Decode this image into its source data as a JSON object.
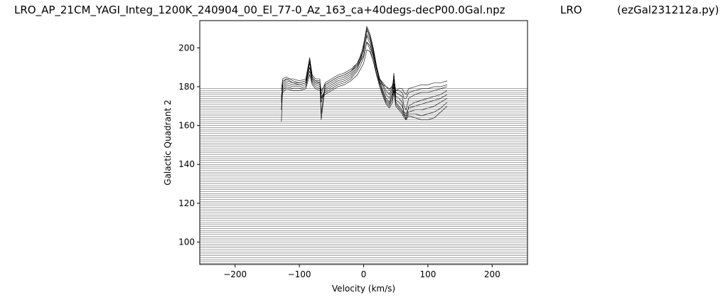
{
  "title": {
    "left": "LRO_AP_21CM_YAGI_Integ_1200K_240904_00_El_77-0_Az_163_ca+40degs-decP00.0Gal.npz",
    "middle": "LRO",
    "right": "(ezGal231212a.py)"
  },
  "chart_data": {
    "type": "line",
    "xlabel": "Velocity (km/s)",
    "ylabel": "Galactic Quadrant 2",
    "xlim": [
      -255,
      255
    ],
    "ylim": [
      88.5,
      214
    ],
    "xticks": [
      -200,
      -100,
      0,
      100,
      200
    ],
    "yticks": [
      100,
      120,
      140,
      160,
      180,
      200
    ],
    "grid": false,
    "line_color": "#000000",
    "baseline_rows": {
      "first": 89,
      "last": 179,
      "step": 1,
      "note": "horizontal zero-signal traces for each galactic longitude row"
    },
    "spectra": [
      {
        "offset": 179,
        "x": [
          -128,
          -126,
          -120,
          -110,
          -100,
          -90,
          -84,
          -80,
          -75,
          -68,
          -66,
          -60,
          -50,
          -40,
          -30,
          -20,
          -10,
          -5,
          0,
          5,
          10,
          15,
          20,
          25,
          30,
          35,
          40,
          45,
          47,
          50,
          55,
          60,
          63,
          66,
          70,
          80,
          90,
          100,
          110,
          120,
          130
        ],
        "y": [
          179,
          183,
          184,
          182,
          181,
          182,
          190,
          184,
          182,
          182,
          178,
          181,
          183,
          185,
          186,
          188,
          191,
          193,
          196,
          203,
          199,
          193,
          187,
          182,
          181,
          180,
          179,
          180,
          181,
          178,
          179,
          179,
          177,
          176,
          179,
          180,
          181,
          181,
          182,
          182,
          183
        ]
      },
      {
        "offset": 178,
        "x": [
          -128,
          -126,
          -120,
          -110,
          -100,
          -90,
          -84,
          -80,
          -75,
          -68,
          -66,
          -60,
          -50,
          -40,
          -30,
          -20,
          -10,
          -5,
          0,
          5,
          10,
          15,
          20,
          25,
          30,
          35,
          40,
          45,
          47,
          50,
          55,
          60,
          63,
          66,
          70,
          80,
          90,
          100,
          110,
          120,
          130
        ],
        "y": [
          178,
          184,
          185,
          183,
          182,
          183,
          193,
          185,
          183,
          183,
          176,
          182,
          184,
          186,
          187,
          189,
          192,
          195,
          199,
          206,
          202,
          196,
          189,
          184,
          182,
          180,
          178,
          181,
          184,
          178,
          178,
          177,
          174,
          174,
          177,
          178,
          179,
          179,
          180,
          180,
          181
        ]
      },
      {
        "offset": 177,
        "x": [
          -128,
          -126,
          -120,
          -110,
          -100,
          -90,
          -84,
          -80,
          -75,
          -68,
          -66,
          -60,
          -50,
          -40,
          -30,
          -20,
          -10,
          -5,
          0,
          5,
          10,
          15,
          20,
          25,
          30,
          35,
          40,
          45,
          47,
          50,
          55,
          60,
          63,
          66,
          70,
          80,
          90,
          100,
          110,
          120,
          130
        ],
        "y": [
          168,
          182,
          184,
          184,
          183,
          184,
          195,
          186,
          184,
          184,
          166,
          181,
          183,
          185,
          186,
          188,
          192,
          196,
          201,
          209,
          205,
          198,
          190,
          184,
          181,
          178,
          176,
          180,
          186,
          177,
          176,
          175,
          170,
          168,
          174,
          176,
          177,
          177,
          178,
          179,
          180
        ]
      },
      {
        "offset": 176,
        "x": [
          -128,
          -126,
          -120,
          -110,
          -100,
          -90,
          -84,
          -80,
          -75,
          -68,
          -66,
          -60,
          -50,
          -40,
          -30,
          -20,
          -10,
          -5,
          0,
          5,
          10,
          15,
          20,
          25,
          30,
          35,
          40,
          45,
          47,
          50,
          55,
          60,
          63,
          66,
          70,
          80,
          90,
          100,
          110,
          120,
          130
        ],
        "y": [
          162,
          181,
          183,
          182,
          182,
          183,
          194,
          185,
          183,
          182,
          163,
          180,
          182,
          184,
          185,
          187,
          191,
          195,
          202,
          211,
          207,
          200,
          191,
          184,
          180,
          176,
          174,
          179,
          187,
          175,
          174,
          172,
          166,
          163,
          170,
          172,
          173,
          174,
          175,
          176,
          178
        ]
      },
      {
        "offset": 175,
        "x": [
          -128,
          -126,
          -120,
          -110,
          -100,
          -90,
          -84,
          -80,
          -75,
          -68,
          -66,
          -60,
          -50,
          -40,
          -30,
          -20,
          -10,
          -5,
          0,
          5,
          10,
          15,
          20,
          25,
          30,
          35,
          40,
          45,
          47,
          50,
          55,
          60,
          63,
          66,
          70,
          80,
          90,
          100,
          110,
          120,
          130
        ],
        "y": [
          175,
          180,
          182,
          181,
          181,
          182,
          192,
          184,
          182,
          181,
          172,
          179,
          181,
          183,
          184,
          186,
          190,
          194,
          200,
          210,
          206,
          199,
          190,
          183,
          178,
          174,
          172,
          177,
          184,
          173,
          172,
          170,
          167,
          166,
          169,
          170,
          171,
          172,
          173,
          174,
          176
        ]
      },
      {
        "offset": 174,
        "x": [
          -128,
          -126,
          -120,
          -110,
          -100,
          -90,
          -84,
          -80,
          -75,
          -68,
          -66,
          -60,
          -50,
          -40,
          -30,
          -20,
          -10,
          -5,
          0,
          5,
          10,
          15,
          20,
          25,
          30,
          35,
          40,
          45,
          47,
          50,
          55,
          60,
          63,
          66,
          70,
          80,
          90,
          100,
          110,
          120,
          130
        ],
        "y": [
          174,
          179,
          181,
          180,
          180,
          181,
          190,
          183,
          181,
          180,
          174,
          178,
          180,
          182,
          183,
          185,
          189,
          193,
          198,
          207,
          204,
          197,
          189,
          182,
          177,
          173,
          171,
          176,
          182,
          172,
          170,
          168,
          166,
          165,
          167,
          168,
          168,
          169,
          170,
          172,
          174
        ]
      },
      {
        "offset": 173,
        "x": [
          -128,
          -126,
          -120,
          -110,
          -100,
          -90,
          -84,
          -80,
          -75,
          -68,
          -66,
          -60,
          -50,
          -40,
          -30,
          -20,
          -10,
          -5,
          0,
          5,
          10,
          15,
          20,
          25,
          30,
          35,
          40,
          45,
          47,
          50,
          55,
          60,
          63,
          66,
          70,
          80,
          90,
          100,
          110,
          120,
          130
        ],
        "y": [
          173,
          178,
          180,
          179,
          179,
          180,
          188,
          182,
          180,
          179,
          175,
          177,
          179,
          181,
          182,
          184,
          188,
          191,
          195,
          203,
          201,
          195,
          187,
          181,
          176,
          172,
          170,
          174,
          180,
          171,
          169,
          167,
          165,
          164,
          166,
          166,
          165,
          166,
          167,
          169,
          172
        ]
      },
      {
        "offset": 172,
        "x": [
          -128,
          -126,
          -120,
          -110,
          -100,
          -90,
          -84,
          -80,
          -75,
          -68,
          -66,
          -60,
          -50,
          -40,
          -30,
          -20,
          -10,
          -5,
          0,
          5,
          10,
          15,
          20,
          25,
          30,
          35,
          40,
          45,
          47,
          50,
          55,
          60,
          63,
          66,
          70,
          80,
          90,
          100,
          110,
          120,
          130
        ],
        "y": [
          172,
          177,
          179,
          178,
          178,
          179,
          186,
          181,
          179,
          178,
          174,
          176,
          178,
          180,
          181,
          183,
          186,
          189,
          192,
          199,
          198,
          193,
          186,
          180,
          175,
          171,
          169,
          172,
          178,
          170,
          168,
          166,
          164,
          163,
          165,
          164,
          163,
          163,
          164,
          167,
          170
        ]
      }
    ]
  }
}
